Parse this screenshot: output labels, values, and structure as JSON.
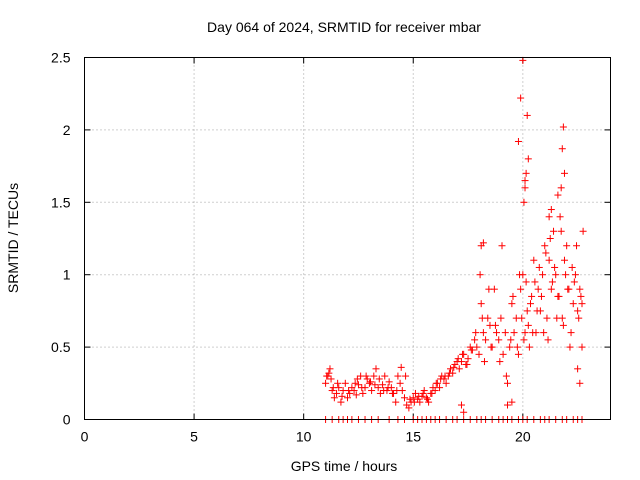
{
  "chart_data": {
    "type": "scatter",
    "title": "Day 064 of 2024, SRMTID for receiver mbar",
    "xlabel": "GPS time / hours",
    "ylabel": "SRMTID / TECUs",
    "xlim": [
      0,
      24
    ],
    "ylim": [
      0,
      2.5
    ],
    "xticks": [
      0,
      5,
      10,
      15,
      20
    ],
    "xtick_labels": [
      "0",
      "5",
      "10",
      "15",
      "20"
    ],
    "yticks": [
      0,
      0.5,
      1,
      1.5,
      2,
      2.5
    ],
    "ytick_labels": [
      "0",
      "0.5",
      "1",
      "1.5",
      "2",
      "2.5"
    ],
    "grid": true,
    "marker": "+",
    "color": "#ff0000",
    "series": [
      {
        "name": "SRMTID",
        "x": [
          11.0,
          11.1,
          11.2,
          11.3,
          11.4,
          11.5,
          11.6,
          11.7,
          11.8,
          11.9,
          12.0,
          12.1,
          12.2,
          12.3,
          12.4,
          12.5,
          12.6,
          12.7,
          12.8,
          12.9,
          13.0,
          13.1,
          13.2,
          13.3,
          13.4,
          13.5,
          13.6,
          13.7,
          13.8,
          13.9,
          14.0,
          14.1,
          14.2,
          14.3,
          14.4,
          14.5,
          14.6,
          14.7,
          14.8,
          14.9,
          15.0,
          15.1,
          15.2,
          15.3,
          15.4,
          15.5,
          15.6,
          15.7,
          15.8,
          15.9,
          16.0,
          16.1,
          16.2,
          16.3,
          16.4,
          16.5,
          16.6,
          16.7,
          16.8,
          16.9,
          17.0,
          17.1,
          17.2,
          17.3,
          17.4,
          17.5,
          17.6,
          17.7,
          17.8,
          17.9,
          18.0,
          18.1,
          18.2,
          18.3,
          18.4,
          18.5,
          18.6,
          18.7,
          18.8,
          18.9,
          19.0,
          19.1,
          19.2,
          19.3,
          19.4,
          19.5,
          19.6,
          19.7,
          19.8,
          19.9,
          20.0,
          20.1,
          20.2,
          20.3,
          20.4,
          20.5,
          20.6,
          20.7,
          20.8,
          20.9,
          21.0,
          21.1,
          21.2,
          21.3,
          21.4,
          21.5,
          21.6,
          21.7,
          21.8,
          21.9,
          22.0,
          22.1,
          22.2,
          22.3,
          22.4,
          22.5,
          22.6,
          22.7,
          11.05,
          11.15,
          11.25,
          11.35,
          11.55,
          11.75,
          12.05,
          12.35,
          12.45,
          12.65,
          12.85,
          13.05,
          13.25,
          13.45,
          13.65,
          13.85,
          14.05,
          14.25,
          14.45,
          14.65,
          14.85,
          15.05,
          15.25,
          15.45,
          15.65,
          15.85,
          16.05,
          16.25,
          16.45,
          16.65,
          16.85,
          17.05,
          17.25,
          17.45,
          17.65,
          17.85,
          18.05,
          18.15,
          18.25,
          18.45,
          18.55,
          18.75,
          18.95,
          19.05,
          19.25,
          19.45,
          19.55,
          19.75,
          19.85,
          19.95,
          20.05,
          20.15,
          20.25,
          20.35,
          20.45,
          20.55,
          20.65,
          20.75,
          20.85,
          20.95,
          21.05,
          21.15,
          21.25,
          21.35,
          21.45,
          21.55,
          21.65,
          21.75,
          21.85,
          21.95,
          22.05,
          22.15,
          22.25,
          22.35,
          22.45,
          22.55,
          22.65,
          22.75,
          19.8,
          19.9,
          20.1,
          20.15,
          20.2,
          20.25,
          21.6,
          21.75,
          21.8,
          21.85,
          21.9,
          18.1,
          18.2,
          20.0,
          20.05,
          20.1,
          21.2,
          21.3,
          22.5,
          22.6,
          17.2,
          17.3,
          19.3,
          19.5,
          22.7
        ],
        "y": [
          0.25,
          0.3,
          0.35,
          0.2,
          0.15,
          0.18,
          0.22,
          0.12,
          0.2,
          0.25,
          0.15,
          0.18,
          0.22,
          0.2,
          0.17,
          0.24,
          0.3,
          0.18,
          0.22,
          0.28,
          0.25,
          0.2,
          0.3,
          0.35,
          0.22,
          0.18,
          0.24,
          0.3,
          0.2,
          0.26,
          0.22,
          0.18,
          0.12,
          0.3,
          0.25,
          0.2,
          0.15,
          0.1,
          0.08,
          0.12,
          0.15,
          0.18,
          0.14,
          0.12,
          0.16,
          0.2,
          0.15,
          0.12,
          0.18,
          0.22,
          0.2,
          0.25,
          0.22,
          0.3,
          0.28,
          0.25,
          0.3,
          0.35,
          0.32,
          0.38,
          0.4,
          0.35,
          0.4,
          0.45,
          0.38,
          0.42,
          0.5,
          0.48,
          0.55,
          0.5,
          0.45,
          0.8,
          0.6,
          0.55,
          0.7,
          0.65,
          0.5,
          0.9,
          0.6,
          0.55,
          0.7,
          0.45,
          0.6,
          0.25,
          0.5,
          0.8,
          0.6,
          0.7,
          0.45,
          0.9,
          1.0,
          0.6,
          0.75,
          0.5,
          0.85,
          1.1,
          0.6,
          0.9,
          0.75,
          1.0,
          1.2,
          0.7,
          1.1,
          0.9,
          1.3,
          1.0,
          0.85,
          1.4,
          0.7,
          1.1,
          1.2,
          0.9,
          0.6,
          0.8,
          1.0,
          0.75,
          0.9,
          0.8,
          0.3,
          0.32,
          0.28,
          0.22,
          0.25,
          0.16,
          0.2,
          0.25,
          0.28,
          0.22,
          0.3,
          0.26,
          0.24,
          0.28,
          0.2,
          0.22,
          0.18,
          0.2,
          0.36,
          0.3,
          0.14,
          0.12,
          0.16,
          0.18,
          0.14,
          0.18,
          0.25,
          0.28,
          0.3,
          0.32,
          0.36,
          0.42,
          0.45,
          0.38,
          0.48,
          0.6,
          1.0,
          0.7,
          0.4,
          0.9,
          0.5,
          0.65,
          0.4,
          1.2,
          0.3,
          0.55,
          0.85,
          0.5,
          1.0,
          0.7,
          0.55,
          0.95,
          0.65,
          0.8,
          0.6,
          0.95,
          0.75,
          1.05,
          0.85,
          0.6,
          1.15,
          0.55,
          1.25,
          0.95,
          1.05,
          0.7,
          0.85,
          1.3,
          0.65,
          1.0,
          0.9,
          0.5,
          1.05,
          0.95,
          1.2,
          0.7,
          0.85,
          1.3,
          1.92,
          2.22,
          1.6,
          1.7,
          2.1,
          1.8,
          1.55,
          1.6,
          1.87,
          2.02,
          1.7,
          1.2,
          1.22,
          2.48,
          1.5,
          1.65,
          1.4,
          1.45,
          0.35,
          0.25,
          0.1,
          0.05,
          0.1,
          0.12,
          0.5
        ],
        "zeros_x": [
          11.0,
          11.3,
          11.6,
          11.8,
          12.0,
          12.2,
          12.5,
          12.8,
          13.1,
          13.4,
          13.9,
          14.3,
          14.6,
          15.0,
          15.2,
          15.4,
          15.6,
          15.8,
          16.0,
          16.2,
          16.5,
          16.8,
          17.0,
          17.3,
          17.6,
          17.9,
          18.1,
          18.3,
          18.6,
          18.9,
          19.1,
          19.3,
          19.5,
          19.8,
          20.0,
          20.2,
          20.5,
          20.8,
          21.0,
          21.2,
          21.5,
          21.8,
          22.0,
          22.3,
          22.5,
          22.7
        ]
      }
    ]
  }
}
